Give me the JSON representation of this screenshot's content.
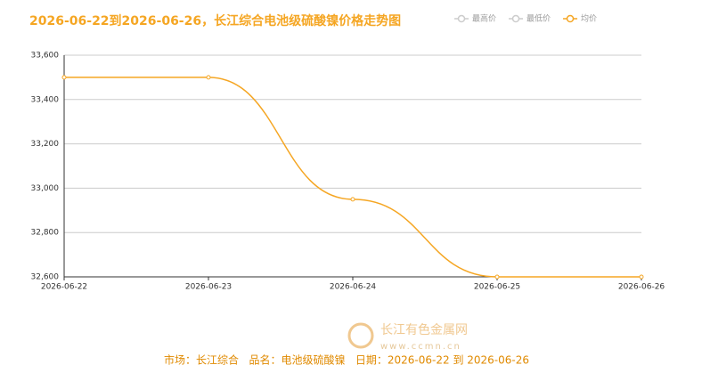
{
  "chart_data": {
    "type": "line",
    "title": "2026-06-22到2026-06-26，长江综合电池级硫酸镍价格走势图",
    "categories": [
      "2026-06-22",
      "2026-06-23",
      "2026-06-24",
      "2026-06-25",
      "2026-06-26"
    ],
    "series": [
      {
        "name": "最高价",
        "color": "#cccccc",
        "values": [
          null,
          null,
          null,
          null,
          null
        ]
      },
      {
        "name": "最低价",
        "color": "#cccccc",
        "values": [
          null,
          null,
          null,
          null,
          null
        ]
      },
      {
        "name": "均价",
        "color": "#f5a623",
        "values": [
          33500,
          33500,
          32950,
          32600,
          32600
        ]
      }
    ],
    "ylim": [
      32600,
      33600
    ],
    "yticks": [
      {
        "value": 32600,
        "label": "32,600"
      },
      {
        "value": 32800,
        "label": "32,800"
      },
      {
        "value": 33000,
        "label": "33,000"
      },
      {
        "value": 33200,
        "label": "33,200"
      },
      {
        "value": 33400,
        "label": "33,400"
      },
      {
        "value": 33600,
        "label": "33,600"
      }
    ],
    "grid": true,
    "footer": "市场：长江综合   品名：电池级硫酸镍   日期：2026-06-22 到 2026-06-26",
    "watermark": [
      "长江有色金属网",
      "www.ccmn.cn"
    ]
  }
}
